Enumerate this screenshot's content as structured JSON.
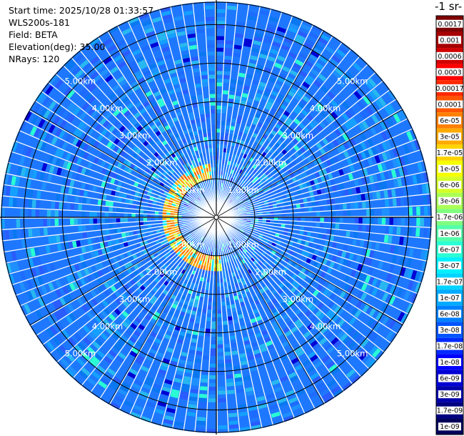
{
  "info": {
    "start_time": "Start time: 2025/10/28 01:33:57",
    "instrument": "WLS200s-181",
    "field": "Field: BETA",
    "elevation": "Elevation(deg): 35.00",
    "nrays": "NRays: 120"
  },
  "colorbar": {
    "title_fragment": "-1 sr-",
    "labels": [
      "0.0017",
      "0.001",
      "0.0006",
      "0.0003",
      "0.00017",
      "0.0001",
      "6e-05",
      "3e-05",
      "1.7e-05",
      "1e-05",
      "6e-06",
      "3e-06",
      "1.7e-06",
      "1e-06",
      "6e-07",
      "3e-07",
      "1.7e-07",
      "1e-07",
      "6e-08",
      "3e-08",
      "1.7e-08",
      "1e-08",
      "6e-09",
      "3e-09",
      "1.7e-09",
      "1e-09"
    ],
    "colors": [
      "#7f0000",
      "#a60000",
      "#d00000",
      "#ff0000",
      "#ff2a00",
      "#ff5500",
      "#ff8000",
      "#ffaa00",
      "#ffd400",
      "#f5ff00",
      "#d4ff2a",
      "#aaff55",
      "#80ff80",
      "#55ffaa",
      "#2affd4",
      "#00f0ff",
      "#00d4ff",
      "#00aaff",
      "#0080ff",
      "#0055ff",
      "#002aff",
      "#0000ff",
      "#0000d4",
      "#0000aa",
      "#000080",
      "#00005a"
    ]
  },
  "chart_data": {
    "type": "heatmap",
    "projection": "polar plan position indicator",
    "field": "BETA",
    "elevation_deg": 35.0,
    "n_rays": 120,
    "range_rings_km": [
      1.0,
      2.0,
      3.0,
      4.0,
      5.0
    ],
    "max_range_km": 5.6,
    "ring_labels": [
      "1.00km",
      "2.00km",
      "3.00km",
      "4.00km",
      "5.00km"
    ],
    "background_level": "3e-08",
    "aerosol_layer_ring": {
      "range_km": [
        1.0,
        1.3
      ],
      "azimuth_deg": [
        175,
        355
      ],
      "peak_value": "3e-05"
    },
    "grid": true
  }
}
